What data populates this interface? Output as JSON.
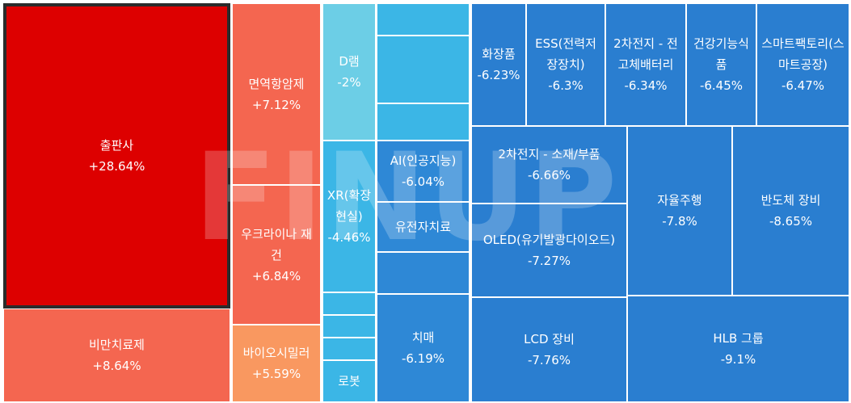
{
  "chart_data": {
    "type": "heatmap",
    "watermark": "FINUP",
    "colors": {
      "strong_up": "#dd0000",
      "up": "#f46650",
      "mild_up": "#f99860",
      "mild_down": "#6ccee6",
      "down": "#3bb6e6",
      "strong_down": "#2a7ed0"
    },
    "tiles": [
      {
        "name": "출판사",
        "change": "+28.64%",
        "color": "#dd0000",
        "selected": true
      },
      {
        "name": "비만치료제",
        "change": "+8.64%",
        "color": "#f46650"
      },
      {
        "name": "면역항암제",
        "change": "+7.12%",
        "color": "#f46650"
      },
      {
        "name": "우크라이나 재건",
        "change": "+6.84%",
        "color": "#f46650"
      },
      {
        "name": "바이오시밀러",
        "change": "+5.59%",
        "color": "#f99860"
      },
      {
        "name": "D램",
        "change": "-2%",
        "color": "#6ccee6"
      },
      {
        "name": "XR(확장현실)",
        "change": "-4.46%",
        "color": "#3bb6e6"
      },
      {
        "name": "",
        "change": "",
        "color": "#3bb6e6"
      },
      {
        "name": "",
        "change": "",
        "color": "#3bb6e6"
      },
      {
        "name": "",
        "change": "",
        "color": "#3bb6e6"
      },
      {
        "name": "로봇",
        "change": "",
        "color": "#3bb6e6"
      },
      {
        "name": "",
        "change": "",
        "color": "#3bb6e6"
      },
      {
        "name": "",
        "change": "",
        "color": "#3bb6e6"
      },
      {
        "name": "",
        "change": "",
        "color": "#3bb6e6"
      },
      {
        "name": "AI(인공지능)",
        "change": "-6.04%",
        "color": "#2e88d6"
      },
      {
        "name": "유전자치료",
        "change": "",
        "color": "#2e88d6"
      },
      {
        "name": "",
        "change": "",
        "color": "#2e88d6"
      },
      {
        "name": "치매",
        "change": "-6.19%",
        "color": "#2e88d6"
      },
      {
        "name": "화장품",
        "change": "-6.23%",
        "color": "#2a7ed0"
      },
      {
        "name": "ESS(전력저장장치)",
        "change": "-6.3%",
        "color": "#2a7ed0"
      },
      {
        "name": "2차전지 - 전고체배터리",
        "change": "-6.34%",
        "color": "#2a7ed0"
      },
      {
        "name": "건강기능식품",
        "change": "-6.45%",
        "color": "#2a7ed0"
      },
      {
        "name": "스마트팩토리(스마트공장)",
        "change": "-6.47%",
        "color": "#2a7ed0"
      },
      {
        "name": "2차전지 - 소재/부품",
        "change": "-6.66%",
        "color": "#2a7ed0"
      },
      {
        "name": "OLED(유기발광다이오드)",
        "change": "-7.27%",
        "color": "#2a7ed0"
      },
      {
        "name": "자율주행",
        "change": "-7.8%",
        "color": "#2a7ed0"
      },
      {
        "name": "반도체 장비",
        "change": "-8.65%",
        "color": "#2a7ed0"
      },
      {
        "name": "LCD 장비",
        "change": "-7.76%",
        "color": "#2a7ed0"
      },
      {
        "name": "HLB 그룹",
        "change": "-9.1%",
        "color": "#2a7ed0"
      }
    ]
  }
}
